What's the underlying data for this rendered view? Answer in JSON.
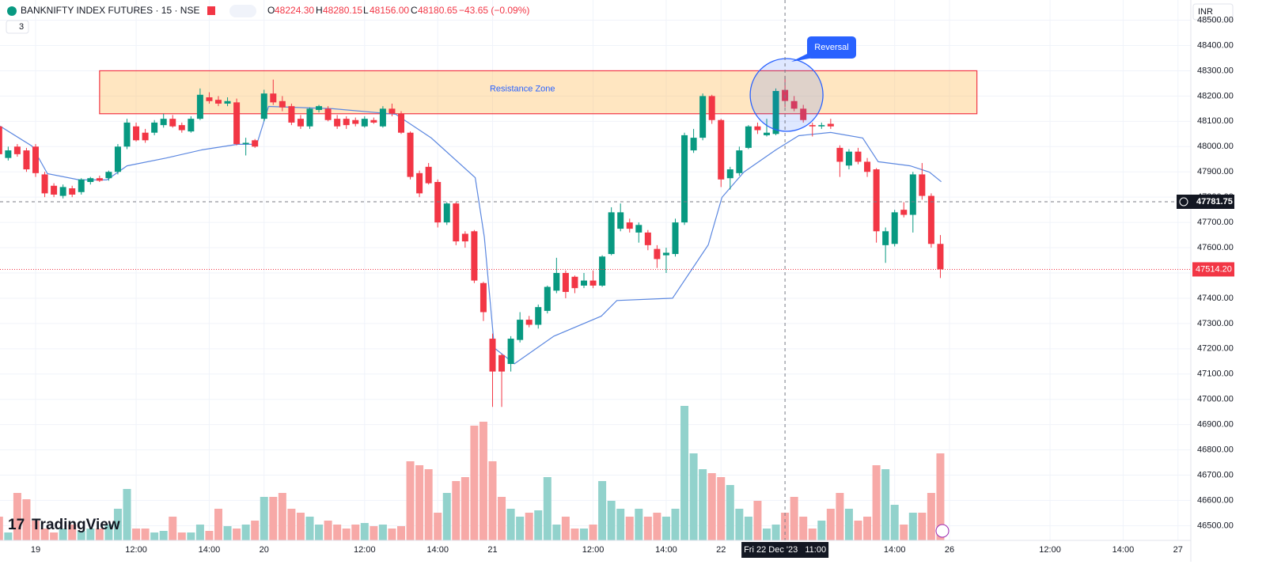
{
  "header": {
    "symbol": "BANKNIFTY INDEX FUTURES · 15 · NSE",
    "open_key": "O",
    "open": "48224.30",
    "high_key": "H",
    "high": "48280.15",
    "low_key": "L",
    "low": "48156.00",
    "close_key": "C",
    "close": "48180.65",
    "change": "−43.65 (−0.09%)",
    "indicators": "3",
    "currency": "INR",
    "brand": "TradingView"
  },
  "chart_data": {
    "type": "candlestick",
    "ylim": [
      46420,
      48580
    ],
    "yticks": [
      {
        "value": 46500,
        "label": "46500.00"
      },
      {
        "value": 46600,
        "label": "46600.00"
      },
      {
        "value": 46700,
        "label": "46700.00"
      },
      {
        "value": 46800,
        "label": "46800.00"
      },
      {
        "value": 46900,
        "label": "46900.00"
      },
      {
        "value": 47000,
        "label": "47000.00"
      },
      {
        "value": 47100,
        "label": "47100.00"
      },
      {
        "value": 47200,
        "label": "47200.00"
      },
      {
        "value": 47300,
        "label": "47300.00"
      },
      {
        "value": 47400,
        "label": "47400.00"
      },
      {
        "value": 47500,
        "label": "47500.00"
      },
      {
        "value": 47600,
        "label": "47600.00"
      },
      {
        "value": 47700,
        "label": "47700.00"
      },
      {
        "value": 47800,
        "label": "47800.00"
      },
      {
        "value": 47900,
        "label": "47900.00"
      },
      {
        "value": 48000,
        "label": "48000.00"
      },
      {
        "value": 48100,
        "label": "48100.00"
      },
      {
        "value": 48200,
        "label": "48200.00"
      },
      {
        "value": 48300,
        "label": "48300.00"
      },
      {
        "value": 48400,
        "label": "48400.00"
      },
      {
        "value": 48500,
        "label": "48500.00"
      }
    ],
    "xticks": [
      {
        "value": 4,
        "label": "19"
      },
      {
        "value": 15,
        "label": "12:00"
      },
      {
        "value": 23,
        "label": "14:00"
      },
      {
        "value": 29,
        "label": "20"
      },
      {
        "value": 40,
        "label": "12:00"
      },
      {
        "value": 48,
        "label": "14:00"
      },
      {
        "value": 54,
        "label": "21"
      },
      {
        "value": 65,
        "label": "12:00"
      },
      {
        "value": 73,
        "label": "14:00"
      },
      {
        "value": 79,
        "label": "22"
      },
      {
        "value": 98,
        "label": "14:00"
      },
      {
        "value": 104,
        "label": "26"
      },
      {
        "value": 115,
        "label": "12:00"
      },
      {
        "value": 123,
        "label": "14:00"
      },
      {
        "value": 129,
        "label": "27"
      }
    ],
    "grid": true,
    "up_color": "#089981",
    "down_color": "#f23645",
    "volume_up_color": "#92d2cc",
    "volume_down_color": "#f7a9a7",
    "line_color": "#5b87e0",
    "candles": [
      [
        48080,
        48105,
        47960,
        47970
      ],
      [
        47955,
        48000,
        47945,
        47985
      ],
      [
        48000,
        48010,
        47960,
        47970
      ],
      [
        47985,
        47995,
        47900,
        47910
      ],
      [
        48000,
        48010,
        47880,
        47895
      ],
      [
        47890,
        47900,
        47800,
        47815
      ],
      [
        47845,
        47855,
        47800,
        47810
      ],
      [
        47805,
        47850,
        47795,
        47840
      ],
      [
        47835,
        47845,
        47800,
        47810
      ],
      [
        47820,
        47875,
        47810,
        47870
      ],
      [
        47860,
        47880,
        47850,
        47875
      ],
      [
        47875,
        47885,
        47860,
        47865
      ],
      [
        47875,
        47905,
        47865,
        47900
      ],
      [
        47900,
        48010,
        47890,
        48000
      ],
      [
        48000,
        48110,
        47990,
        48095
      ],
      [
        48080,
        48095,
        48020,
        48025
      ],
      [
        48055,
        48070,
        48015,
        48025
      ],
      [
        48055,
        48105,
        48045,
        48095
      ],
      [
        48085,
        48130,
        48075,
        48110
      ],
      [
        48110,
        48125,
        48075,
        48080
      ],
      [
        48085,
        48095,
        48055,
        48065
      ],
      [
        48060,
        48120,
        48055,
        48110
      ],
      [
        48110,
        48230,
        48105,
        48205
      ],
      [
        48195,
        48215,
        48170,
        48180
      ],
      [
        48185,
        48200,
        48160,
        48170
      ],
      [
        48170,
        48195,
        48160,
        48180
      ],
      [
        48175,
        48190,
        48005,
        48010
      ],
      [
        48010,
        48035,
        47965,
        48015
      ],
      [
        48025,
        48030,
        47995,
        48000
      ],
      [
        48110,
        48225,
        48100,
        48210
      ],
      [
        48210,
        48265,
        48165,
        48175
      ],
      [
        48180,
        48200,
        48140,
        48155
      ],
      [
        48160,
        48170,
        48085,
        48095
      ],
      [
        48110,
        48125,
        48070,
        48080
      ],
      [
        48080,
        48155,
        48070,
        48150
      ],
      [
        48145,
        48165,
        48135,
        48160
      ],
      [
        48150,
        48160,
        48100,
        48105
      ],
      [
        48110,
        48125,
        48070,
        48080
      ],
      [
        48110,
        48120,
        48070,
        48085
      ],
      [
        48105,
        48115,
        48080,
        48090
      ],
      [
        48080,
        48120,
        48075,
        48110
      ],
      [
        48105,
        48115,
        48090,
        48095
      ],
      [
        48080,
        48160,
        48075,
        48150
      ],
      [
        48150,
        48170,
        48120,
        48130
      ],
      [
        48130,
        48140,
        48050,
        48055
      ],
      [
        48055,
        48060,
        47870,
        47880
      ],
      [
        47895,
        47905,
        47800,
        47815
      ],
      [
        47920,
        47935,
        47850,
        47855
      ],
      [
        47860,
        47870,
        47680,
        47700
      ],
      [
        47700,
        47780,
        47690,
        47775
      ],
      [
        47775,
        47780,
        47610,
        47625
      ],
      [
        47655,
        47665,
        47600,
        47625
      ],
      [
        47665,
        47670,
        47460,
        47470
      ],
      [
        47460,
        47465,
        47310,
        47345
      ],
      [
        47240,
        47260,
        46970,
        47110
      ],
      [
        47175,
        47180,
        46970,
        47110
      ],
      [
        47140,
        47250,
        47110,
        47240
      ],
      [
        47235,
        47345,
        47225,
        47315
      ],
      [
        47315,
        47330,
        47285,
        47295
      ],
      [
        47295,
        47375,
        47280,
        47365
      ],
      [
        47350,
        47450,
        47340,
        47445
      ],
      [
        47430,
        47560,
        47420,
        47500
      ],
      [
        47500,
        47510,
        47400,
        47425
      ],
      [
        47485,
        47490,
        47420,
        47440
      ],
      [
        47450,
        47500,
        47440,
        47470
      ],
      [
        47470,
        47510,
        47440,
        47450
      ],
      [
        47450,
        47570,
        47445,
        47565
      ],
      [
        47575,
        47760,
        47570,
        47740
      ],
      [
        47675,
        47775,
        47665,
        47740
      ],
      [
        47700,
        47715,
        47660,
        47675
      ],
      [
        47660,
        47700,
        47620,
        47690
      ],
      [
        47660,
        47670,
        47590,
        47610
      ],
      [
        47595,
        47610,
        47520,
        47555
      ],
      [
        47570,
        47600,
        47500,
        47580
      ],
      [
        47575,
        47715,
        47565,
        47700
      ],
      [
        47700,
        48055,
        47690,
        48045
      ],
      [
        47985,
        48070,
        47975,
        48035
      ],
      [
        48035,
        48210,
        48025,
        48200
      ],
      [
        48200,
        48205,
        48090,
        48105
      ],
      [
        48105,
        48110,
        47840,
        47870
      ],
      [
        47875,
        47920,
        47830,
        47910
      ],
      [
        47895,
        48000,
        47885,
        47985
      ],
      [
        47995,
        48085,
        47990,
        48080
      ],
      [
        48080,
        48095,
        48050,
        48065
      ],
      [
        48045,
        48110,
        48040,
        48055
      ],
      [
        48050,
        48230,
        48045,
        48220
      ],
      [
        48224.3,
        48280.15,
        48156,
        48180.65
      ],
      [
        48180,
        48200,
        48140,
        48150
      ],
      [
        48150,
        48165,
        48095,
        48105
      ],
      [
        48085,
        48095,
        48040,
        48080
      ],
      [
        48080,
        48095,
        48070,
        48085
      ],
      [
        48090,
        48110,
        48070,
        48080
      ],
      [
        47995,
        48005,
        47880,
        47940
      ],
      [
        47925,
        47990,
        47910,
        47980
      ],
      [
        47980,
        47995,
        47930,
        47940
      ],
      [
        47940,
        47955,
        47880,
        47900
      ],
      [
        47910,
        47915,
        47620,
        47665
      ],
      [
        47610,
        47680,
        47540,
        47665
      ],
      [
        47615,
        47750,
        47605,
        47740
      ],
      [
        47750,
        47780,
        47720,
        47730
      ],
      [
        47730,
        47900,
        47660,
        47890
      ],
      [
        47890,
        47935,
        47790,
        47805
      ],
      [
        47805,
        47815,
        47600,
        47615
      ],
      [
        47615,
        47650,
        47480,
        47514.2
      ]
    ],
    "volume_lim": [
      0,
      240
    ],
    "volume": [
      30,
      10,
      60,
      52,
      25,
      15,
      10,
      15,
      20,
      12,
      15,
      15,
      20,
      40,
      65,
      15,
      15,
      10,
      12,
      30,
      10,
      10,
      20,
      12,
      40,
      18,
      15,
      20,
      25,
      55,
      55,
      60,
      40,
      35,
      30,
      20,
      25,
      20,
      15,
      20,
      22,
      18,
      20,
      15,
      18,
      100,
      95,
      90,
      35,
      60,
      75,
      80,
      145,
      150,
      100,
      55,
      40,
      30,
      35,
      38,
      80,
      20,
      30,
      15,
      15,
      20,
      75,
      50,
      40,
      30,
      40,
      30,
      35,
      30,
      40,
      170,
      110,
      90,
      85,
      80,
      70,
      40,
      30,
      50,
      15,
      20,
      35,
      55,
      30,
      15,
      25,
      40,
      60,
      40,
      25,
      30,
      95,
      90,
      45,
      20,
      35,
      35,
      60,
      110
    ],
    "vwap": {
      "x": [
        0.1,
        3.6,
        5.3,
        8.8,
        11.8,
        14,
        18.3,
        22.2,
        26.1,
        28.2,
        29.5,
        36.5,
        43.4,
        47.3,
        52.1,
        53.1,
        54.2,
        56.4,
        60.7,
        65.9,
        67.6,
        73.7,
        77.6,
        79.1,
        81.5,
        85,
        87.5,
        91,
        94.5,
        96.2,
        99.7,
        101.8,
        103.1
      ],
      "values": [
        48081,
        48002,
        47893,
        47868,
        47868,
        47924,
        47955,
        47987,
        48009,
        48009,
        48159,
        48150,
        48128,
        48034,
        47877,
        47642,
        47203,
        47141,
        47250,
        47329,
        47391,
        47400,
        47611,
        47799,
        47899,
        47987,
        48043,
        48056,
        48034,
        47940,
        47924,
        47899,
        47861
      ]
    },
    "resistance_zone": {
      "label": "Resistance Zone",
      "top": 48300,
      "bottom": 48130,
      "start": 11,
      "end": 107
    },
    "reversal": {
      "label": "Reversal"
    },
    "crosshair": {
      "index": 86,
      "label": "Fri 22 Dec '23   11:00",
      "price": {
        "value": 47781.75,
        "label": "47781.75"
      }
    },
    "last_price": {
      "value": 47514.2,
      "label": "47514.20"
    }
  }
}
